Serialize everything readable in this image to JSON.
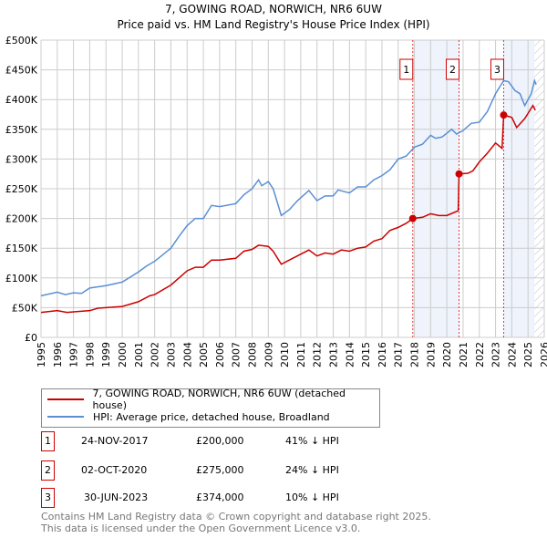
{
  "chart_data": {
    "type": "line",
    "title": "7, GOWING ROAD, NORWICH, NR6 6UW",
    "subtitle": "Price paid vs. HM Land Registry's House Price Index (HPI)",
    "xlim": [
      1995,
      2026
    ],
    "ylim": [
      0,
      500000
    ],
    "x_ticks": [
      "1995",
      "1996",
      "1997",
      "1998",
      "1999",
      "2000",
      "2001",
      "2002",
      "2003",
      "2004",
      "2005",
      "2006",
      "2007",
      "2008",
      "2009",
      "2010",
      "2011",
      "2012",
      "2013",
      "2014",
      "2015",
      "2016",
      "2017",
      "2018",
      "2019",
      "2020",
      "2021",
      "2022",
      "2023",
      "2024",
      "2025",
      "2026"
    ],
    "y_ticks": [
      {
        "v": 0,
        "label": "£0"
      },
      {
        "v": 50000,
        "label": "£50K"
      },
      {
        "v": 100000,
        "label": "£100K"
      },
      {
        "v": 150000,
        "label": "£150K"
      },
      {
        "v": 200000,
        "label": "£200K"
      },
      {
        "v": 250000,
        "label": "£250K"
      },
      {
        "v": 300000,
        "label": "£300K"
      },
      {
        "v": 350000,
        "label": "£350K"
      },
      {
        "v": 400000,
        "label": "£400K"
      },
      {
        "v": 450000,
        "label": "£450K"
      },
      {
        "v": 500000,
        "label": "£500K"
      }
    ],
    "grid": true,
    "shaded_ranges": [
      [
        2017.9,
        2020.75
      ],
      [
        2023.5,
        2025.4
      ]
    ],
    "hatched_from": 2025.4,
    "series": [
      {
        "name": "7, GOWING ROAD, NORWICH, NR6 6UW (detached house)",
        "color": "#cc0000",
        "points": [
          [
            1995,
            42
          ],
          [
            1996,
            45
          ],
          [
            1996.6,
            42
          ],
          [
            1997,
            43
          ],
          [
            1998,
            45
          ],
          [
            1998.5,
            49
          ],
          [
            1999,
            50
          ],
          [
            2000,
            52
          ],
          [
            2001,
            60
          ],
          [
            2001.7,
            70
          ],
          [
            2002,
            72
          ],
          [
            2003,
            88
          ],
          [
            2003.5,
            100
          ],
          [
            2004,
            112
          ],
          [
            2004.5,
            118
          ],
          [
            2005,
            118
          ],
          [
            2005.5,
            130
          ],
          [
            2006,
            130
          ],
          [
            2007,
            133
          ],
          [
            2007.5,
            145
          ],
          [
            2008,
            148
          ],
          [
            2008.4,
            155
          ],
          [
            2009,
            153
          ],
          [
            2009.3,
            145
          ],
          [
            2009.8,
            123
          ],
          [
            2010.5,
            133
          ],
          [
            2011.5,
            147
          ],
          [
            2012,
            137
          ],
          [
            2012.5,
            142
          ],
          [
            2013,
            140
          ],
          [
            2013.5,
            147
          ],
          [
            2014,
            145
          ],
          [
            2014.5,
            150
          ],
          [
            2015,
            152
          ],
          [
            2015.5,
            162
          ],
          [
            2016,
            166
          ],
          [
            2016.5,
            180
          ],
          [
            2017,
            185
          ],
          [
            2017.5,
            192
          ],
          [
            2017.9,
            200
          ],
          [
            2018.5,
            202
          ],
          [
            2019,
            208
          ],
          [
            2019.5,
            205
          ],
          [
            2020,
            205
          ],
          [
            2020.7,
            213
          ],
          [
            2020.75,
            275
          ],
          [
            2021.3,
            276
          ],
          [
            2021.6,
            280
          ],
          [
            2022,
            295
          ],
          [
            2022.5,
            310
          ],
          [
            2023,
            327
          ],
          [
            2023.4,
            318
          ],
          [
            2023.5,
            374
          ],
          [
            2024,
            370
          ],
          [
            2024.3,
            353
          ],
          [
            2024.8,
            368
          ],
          [
            2025.3,
            390
          ],
          [
            2025.45,
            382
          ]
        ]
      },
      {
        "name": "HPI: Average price, detached house, Broadland",
        "color": "#5b8fd4",
        "points": [
          [
            1995,
            70
          ],
          [
            1996,
            76
          ],
          [
            1996.5,
            72
          ],
          [
            1997,
            75
          ],
          [
            1997.5,
            74
          ],
          [
            1998,
            83
          ],
          [
            1999,
            87
          ],
          [
            2000,
            93
          ],
          [
            2001,
            110
          ],
          [
            2001.5,
            120
          ],
          [
            2002,
            128
          ],
          [
            2003,
            150
          ],
          [
            2003.5,
            170
          ],
          [
            2004,
            188
          ],
          [
            2004.5,
            200
          ],
          [
            2005,
            200
          ],
          [
            2005.5,
            222
          ],
          [
            2006,
            220
          ],
          [
            2007,
            225
          ],
          [
            2007.5,
            240
          ],
          [
            2008,
            250
          ],
          [
            2008.4,
            265
          ],
          [
            2008.6,
            255
          ],
          [
            2009,
            262
          ],
          [
            2009.3,
            250
          ],
          [
            2009.8,
            205
          ],
          [
            2010.3,
            215
          ],
          [
            2010.8,
            230
          ],
          [
            2011.5,
            247
          ],
          [
            2012,
            230
          ],
          [
            2012.5,
            238
          ],
          [
            2013,
            238
          ],
          [
            2013.3,
            248
          ],
          [
            2014,
            243
          ],
          [
            2014.5,
            253
          ],
          [
            2015,
            253
          ],
          [
            2015.5,
            265
          ],
          [
            2016,
            272
          ],
          [
            2016.5,
            282
          ],
          [
            2017,
            300
          ],
          [
            2017.5,
            305
          ],
          [
            2018,
            320
          ],
          [
            2018.5,
            325
          ],
          [
            2019,
            340
          ],
          [
            2019.3,
            335
          ],
          [
            2019.7,
            337
          ],
          [
            2020.3,
            350
          ],
          [
            2020.6,
            342
          ],
          [
            2021,
            348
          ],
          [
            2021.5,
            360
          ],
          [
            2022,
            362
          ],
          [
            2022.5,
            380
          ],
          [
            2023,
            410
          ],
          [
            2023.5,
            432
          ],
          [
            2023.8,
            430
          ],
          [
            2024.2,
            415
          ],
          [
            2024.5,
            410
          ],
          [
            2024.8,
            390
          ],
          [
            2025.2,
            410
          ],
          [
            2025.4,
            432
          ],
          [
            2025.5,
            425
          ]
        ]
      }
    ],
    "sales": [
      {
        "id": "1",
        "x": 2017.9,
        "price": 200000
      },
      {
        "id": "2",
        "x": 2020.75,
        "price": 275000
      },
      {
        "id": "3",
        "x": 2023.5,
        "price": 374000
      }
    ]
  },
  "legend": {
    "property": "7, GOWING ROAD, NORWICH, NR6 6UW (detached house)",
    "hpi": "HPI: Average price, detached house, Broadland"
  },
  "transactions": [
    {
      "id": "1",
      "date": "24-NOV-2017",
      "price": "£200,000",
      "hpi": "41% ↓ HPI"
    },
    {
      "id": "2",
      "date": "02-OCT-2020",
      "price": "£275,000",
      "hpi": "24% ↓ HPI"
    },
    {
      "id": "3",
      "date": "30-JUN-2023",
      "price": "£374,000",
      "hpi": "10% ↓ HPI"
    }
  ],
  "footer": {
    "line1": "Contains HM Land Registry data © Crown copyright and database right 2025.",
    "line2": "This data is licensed under the Open Government Licence v3.0."
  }
}
